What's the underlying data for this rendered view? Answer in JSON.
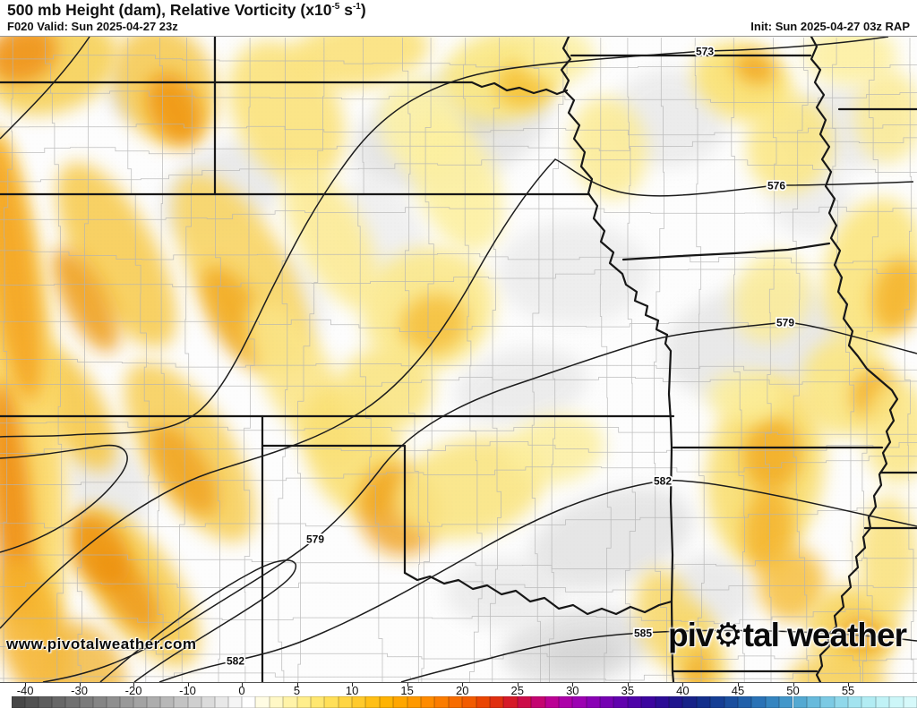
{
  "header": {
    "title": {
      "t1": "500 mb Height (dam), Relative Vorticity (x10",
      "sup1": "-5",
      "t2": " s",
      "sup2": "-1",
      "t3": ")"
    },
    "valid": "F020 Valid: Sun 2025-04-27 23z",
    "init": "Init: Sun 2025-04-27 03z RAP"
  },
  "map": {
    "watermark": "www.pivotalweather.com",
    "logo": {
      "p1": "piv",
      "gear": "⚙",
      "p2": "tal",
      "p3": " weather"
    },
    "contour_labels": [
      "573",
      "576",
      "579",
      "582",
      "579",
      "585",
      "582"
    ]
  },
  "colorbar": {
    "ticks": [
      {
        "v": -40,
        "label": "-40"
      },
      {
        "v": -30,
        "label": "-30"
      },
      {
        "v": -20,
        "label": "-20"
      },
      {
        "v": -10,
        "label": "-10"
      },
      {
        "v": 0,
        "label": "0"
      },
      {
        "v": 5,
        "label": "5"
      },
      {
        "v": 10,
        "label": "10"
      },
      {
        "v": 15,
        "label": "15"
      },
      {
        "v": 20,
        "label": "20"
      },
      {
        "v": 25,
        "label": "25"
      },
      {
        "v": 30,
        "label": "30"
      },
      {
        "v": 35,
        "label": "35"
      },
      {
        "v": 40,
        "label": "40"
      },
      {
        "v": 45,
        "label": "45"
      },
      {
        "v": 50,
        "label": "50"
      },
      {
        "v": 55,
        "label": "55"
      }
    ],
    "neg_colors": [
      "#474747",
      "#515151",
      "#5d5d5d",
      "#676767",
      "#717171",
      "#7b7b7b",
      "#858585",
      "#8f8f8f",
      "#999999",
      "#a3a3a3",
      "#adadad",
      "#b8b8b8",
      "#c3c3c3",
      "#cfcfcf",
      "#dbdbdb",
      "#e8e8e8",
      "#f5f5f5"
    ],
    "pos_colors": [
      "#ffffff",
      "#fffce3",
      "#fff8c6",
      "#fff3a8",
      "#ffee8b",
      "#ffe770",
      "#ffdf58",
      "#ffd542",
      "#ffca2c",
      "#ffbf16",
      "#ffb303",
      "#ffa600",
      "#ff9900",
      "#ff8b00",
      "#fb7c00",
      "#f76c00",
      "#f25b00",
      "#ea4502",
      "#e02f10",
      "#d61a28",
      "#cc0d49",
      "#c40570",
      "#bb0194",
      "#ad01a8",
      "#9c02b2",
      "#8902b4",
      "#7502b2",
      "#6102ae",
      "#4e03a8",
      "#3c059f",
      "#2c0c96",
      "#20168e",
      "#172288",
      "#132f8c",
      "#153e94",
      "#1a4e9e",
      "#2160aa",
      "#2a72b6",
      "#3585c0",
      "#4397ca",
      "#54a9d2",
      "#67badc",
      "#7ccae4",
      "#90d8ea",
      "#a2e3ef",
      "#b2ecf3",
      "#c0f2f6",
      "#ccf6f8",
      "#d6f9fa"
    ]
  }
}
